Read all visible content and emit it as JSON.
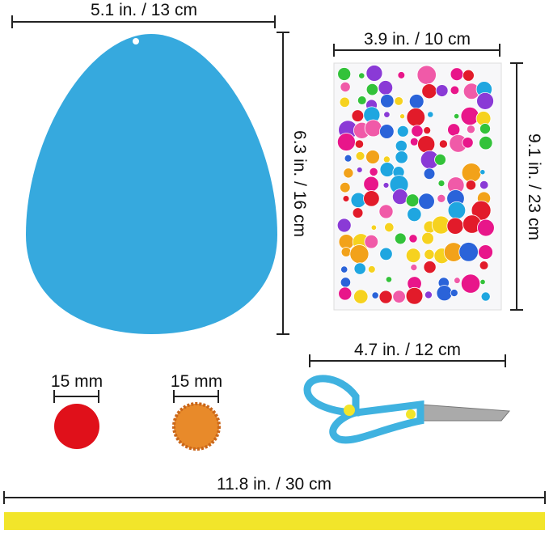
{
  "dimensions": {
    "egg_width": "5.1 in. / 13 cm",
    "egg_height": "6.3 in. / 16 cm",
    "sticker_width": "3.9 in. / 10 cm",
    "sticker_height": "9.1 in. / 23 cm",
    "pompom_red": "15 mm",
    "pompom_orange": "15 mm",
    "scissors_length": "4.7 in. / 12 cm",
    "strip_length": "11.8 in. / 30 cm"
  },
  "colors": {
    "egg": "#36a9de",
    "pompom_red": "#e0101a",
    "pompom_orange": "#e88a2a",
    "scissors": "#3fb2e0",
    "strip": "#f2e52a",
    "gems": [
      "#1fa6e0",
      "#e8168a",
      "#e21b2a",
      "#33c23a",
      "#8a3ad6",
      "#f2a21a",
      "#f6d21f",
      "#2a63d9",
      "#f05aa8"
    ]
  }
}
